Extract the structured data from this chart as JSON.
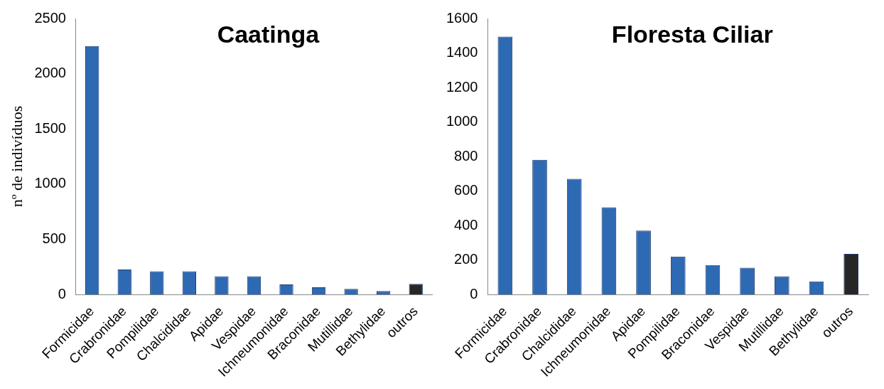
{
  "chart_data": [
    {
      "type": "bar",
      "title": "Caatinga",
      "ylabel": "nº de indivíduos",
      "categories": [
        "Formicidae",
        "Crabronidae",
        "Pompilidae",
        "Chalcididae",
        "Apidae",
        "Vespidae",
        "Ichneumonidae",
        "Braconidae",
        "Mutillidae",
        "Bethylidae",
        "outros"
      ],
      "values": [
        2250,
        225,
        210,
        210,
        165,
        165,
        90,
        65,
        50,
        30,
        95
      ],
      "colors": [
        "#2e69b3",
        "#2e69b3",
        "#2e69b3",
        "#2e69b3",
        "#2e69b3",
        "#2e69b3",
        "#2e69b3",
        "#2e69b3",
        "#2e69b3",
        "#2e69b3",
        "#262626"
      ],
      "ylim": [
        0,
        2500
      ],
      "yticks": [
        0,
        500,
        1000,
        1500,
        2000,
        2500
      ],
      "grid": false,
      "legend": false
    },
    {
      "type": "bar",
      "title": "Floresta Ciliar",
      "categories": [
        "Formicidae",
        "Crabronidae",
        "Chalcididae",
        "Ichneumonidae",
        "Apidae",
        "Pompilidae",
        "Braconidae",
        "Vespidae",
        "Mutillidae",
        "Bethylidae",
        "outros"
      ],
      "values": [
        1495,
        780,
        670,
        505,
        370,
        220,
        170,
        155,
        105,
        75,
        235
      ],
      "colors": [
        "#2e69b3",
        "#2e69b3",
        "#2e69b3",
        "#2e69b3",
        "#2e69b3",
        "#2e69b3",
        "#2e69b3",
        "#2e69b3",
        "#2e69b3",
        "#2e69b3",
        "#262626"
      ],
      "ylim": [
        0,
        1600
      ],
      "yticks": [
        0,
        200,
        400,
        600,
        800,
        1000,
        1200,
        1400,
        1600
      ],
      "grid": false,
      "legend": false
    }
  ]
}
